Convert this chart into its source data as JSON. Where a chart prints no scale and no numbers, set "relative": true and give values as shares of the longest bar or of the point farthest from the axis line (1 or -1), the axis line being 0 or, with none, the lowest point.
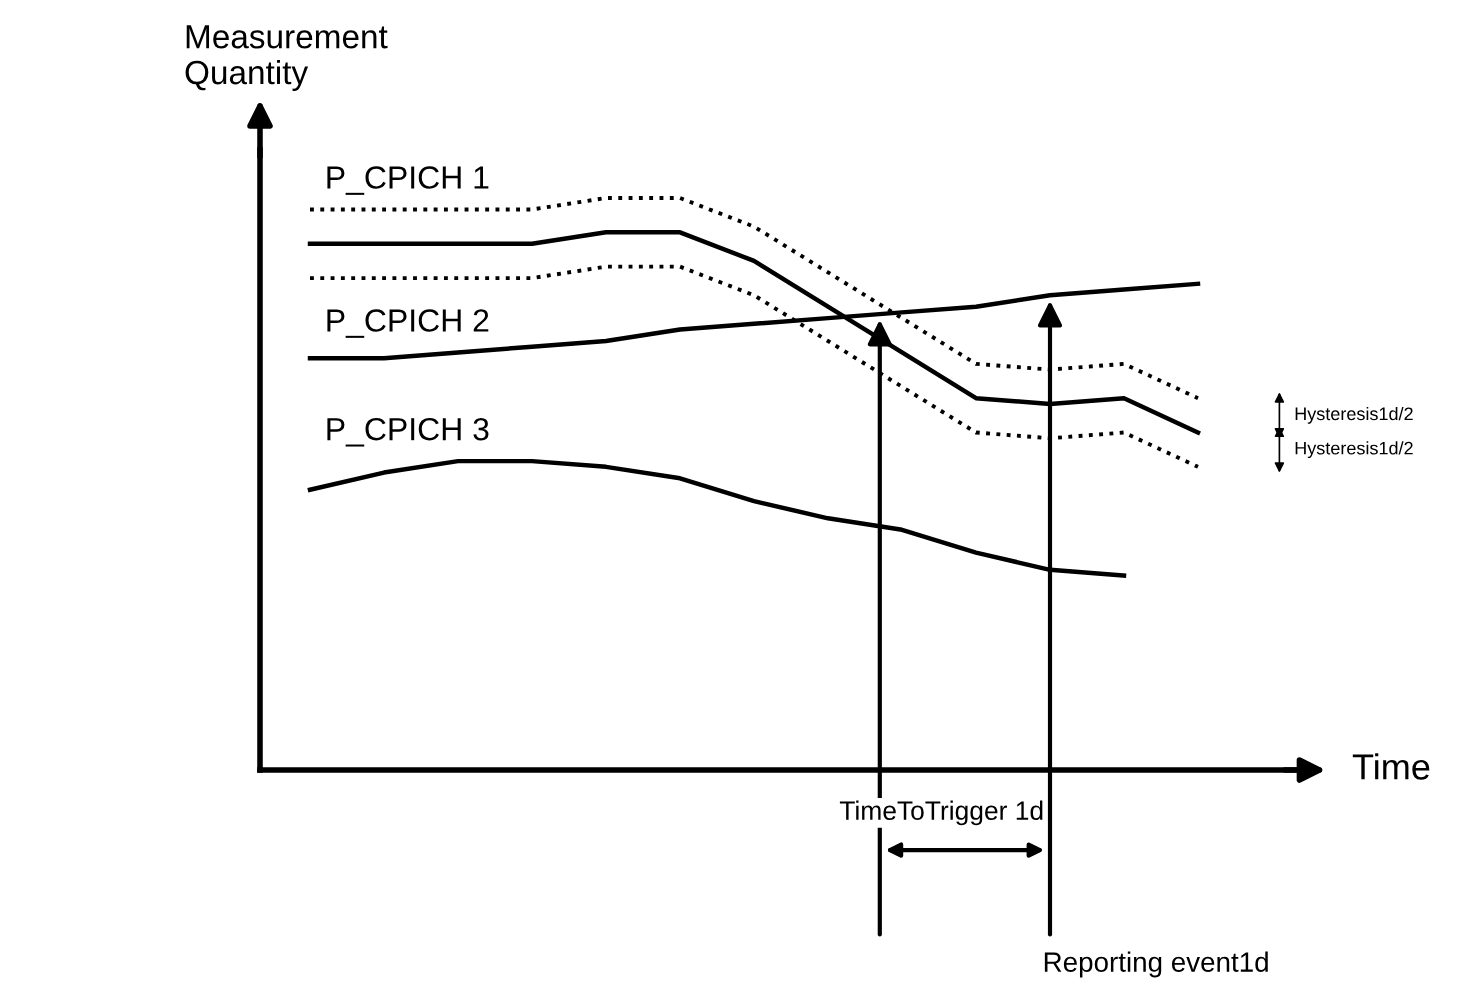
{
  "chart_data": {
    "type": "line",
    "relative": true,
    "xlabel": "Time",
    "ylabel": "Measurement\nQuantity",
    "categories": [
      null,
      null,
      null,
      null,
      null,
      null,
      null,
      null,
      null,
      null,
      null,
      null,
      null
    ],
    "series": [
      {
        "color": "#000000",
        "line_style": "dotted",
        "values": [
          0.98,
          0.98,
          0.98,
          0.98,
          1.0,
          1.0,
          0.95,
          0.87,
          0.79,
          0.71,
          0.7,
          0.71,
          0.65
        ]
      },
      {
        "name": "P_CPICH 1",
        "color": "#000000",
        "line_style": "solid",
        "values": [
          0.92,
          0.92,
          0.92,
          0.92,
          0.94,
          0.94,
          0.89,
          0.81,
          0.73,
          0.65,
          0.64,
          0.65,
          0.59
        ]
      },
      {
        "color": "#000000",
        "line_style": "dotted",
        "values": [
          0.86,
          0.86,
          0.86,
          0.86,
          0.88,
          0.88,
          0.83,
          0.75,
          0.67,
          0.59,
          0.58,
          0.59,
          0.53
        ]
      },
      {
        "name": "P_CPICH 2",
        "color": "#000000",
        "line_style": "solid",
        "values": [
          0.72,
          0.72,
          0.73,
          0.74,
          0.75,
          0.77,
          0.78,
          0.79,
          0.8,
          0.81,
          0.83,
          0.84,
          0.85
        ]
      },
      {
        "name": "P_CPICH 3",
        "color": "#000000",
        "line_style": "solid",
        "values": [
          0.49,
          0.52,
          0.54,
          0.54,
          0.53,
          0.51,
          0.47,
          0.44,
          0.42,
          0.38,
          0.35,
          0.34,
          null
        ]
      }
    ],
    "annotations": [
      "Hysteresis1d/2",
      "Hysteresis1d/2",
      "TimeToTrigger 1d",
      "Reporting event1d"
    ],
    "legend": false
  }
}
